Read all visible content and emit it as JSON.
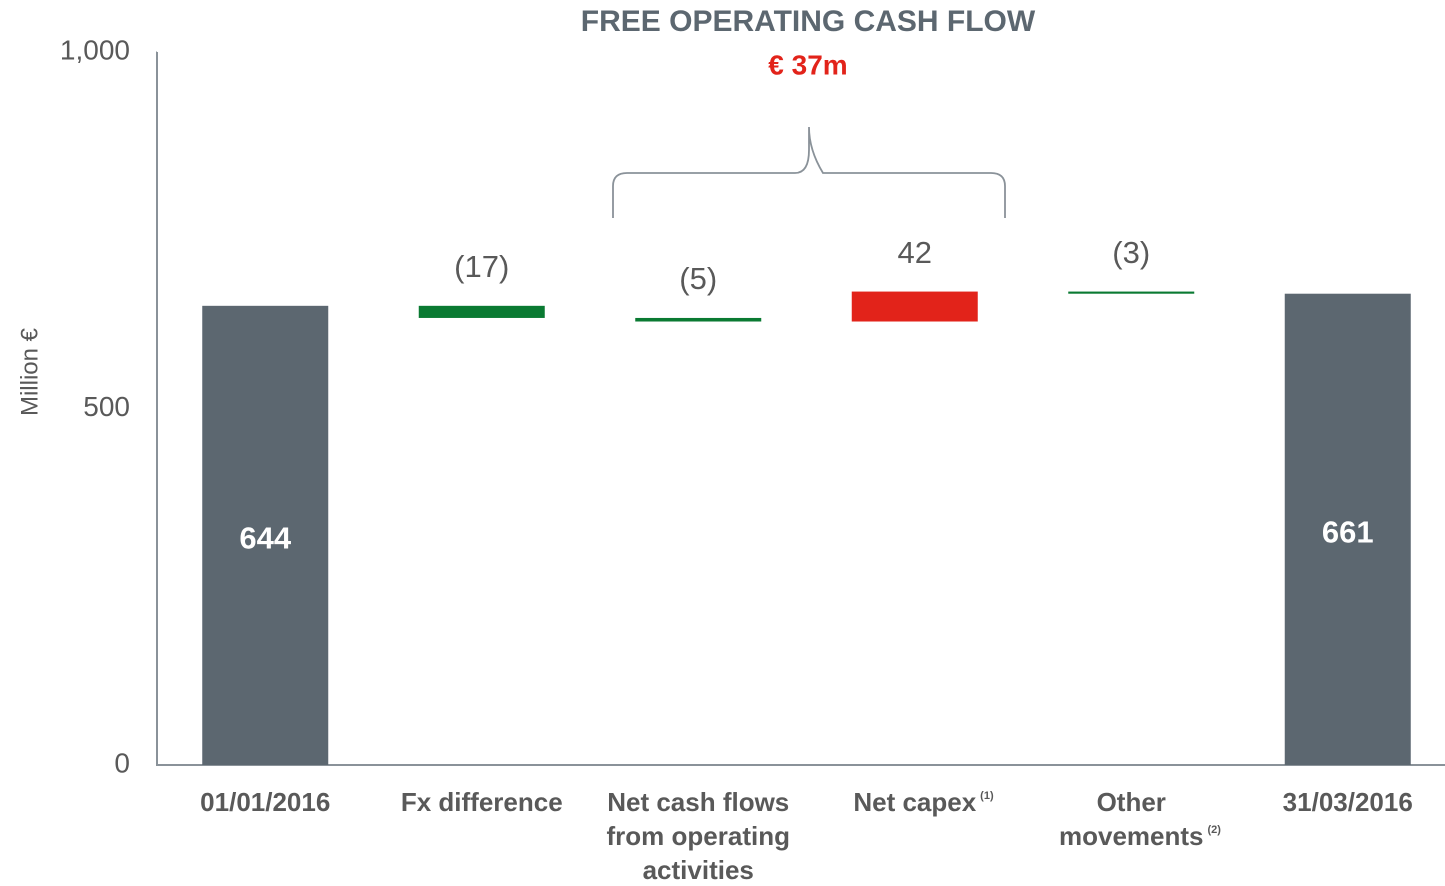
{
  "chart_data": {
    "type": "waterfall",
    "title": "FREE OPERATING CASH FLOW",
    "subtitle": "€ 37m",
    "ylabel": "Million €",
    "categories": [
      [
        "01/01/2016"
      ],
      [
        "Fx difference"
      ],
      [
        "Net cash flows",
        "from operating",
        "activities"
      ],
      [
        "Net capex"
      ],
      [
        "Other",
        "movements"
      ],
      [
        "31/03/2016"
      ]
    ],
    "category_notes": [
      null,
      null,
      null,
      "(1)",
      "(2)",
      null
    ],
    "measure": [
      "total",
      "relative",
      "relative",
      "relative",
      "relative",
      "total"
    ],
    "values": [
      644,
      -17,
      -5,
      42,
      -3,
      661
    ],
    "value_labels": [
      "644",
      "(17)",
      "(5)",
      "42",
      "(3)",
      "661"
    ],
    "colors": [
      "#5c6770",
      "#0a7a32",
      "#0a7a32",
      "#e2231a",
      "#0a7a32",
      "#5c6770"
    ],
    "ylim": [
      0,
      1000
    ],
    "yticks": [
      0,
      500,
      {
        "value": 1000,
        "label": "1,000"
      }
    ],
    "grid": false
  }
}
